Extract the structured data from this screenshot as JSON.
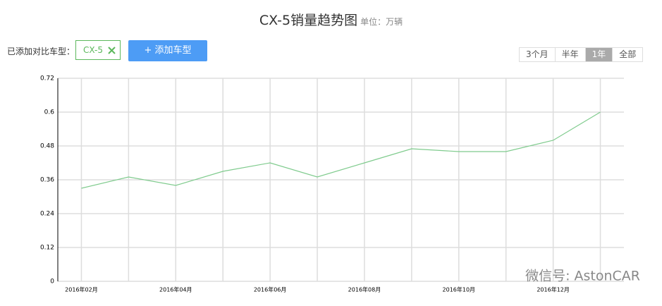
{
  "chart_data": {
    "type": "line",
    "title": "CX-5销量趋势图",
    "subtitle": "单位：万辆",
    "categories": [
      "2016年02月",
      null,
      "2016年04月",
      null,
      "2016年06月",
      null,
      "2016年08月",
      null,
      "2016年10月",
      null,
      "2016年12月",
      null
    ],
    "series": [
      {
        "name": "CX-5",
        "color": "#7fcb8d",
        "values": [
          0.33,
          0.37,
          0.34,
          0.39,
          0.42,
          0.37,
          0.42,
          0.47,
          0.46,
          0.46,
          0.5,
          0.6
        ]
      }
    ],
    "ylim": [
      0,
      0.72
    ],
    "yticks": [
      0,
      0.12,
      0.24,
      0.36,
      0.48,
      0.6,
      0.72
    ],
    "grid": true
  },
  "ui": {
    "compare_label": "已添加对比车型：",
    "add_button": "+ 添加车型",
    "ranges": [
      "3个月",
      "半年",
      "1年",
      "全部"
    ],
    "active_range": 2,
    "watermark": "微信号: AstonCAR"
  }
}
